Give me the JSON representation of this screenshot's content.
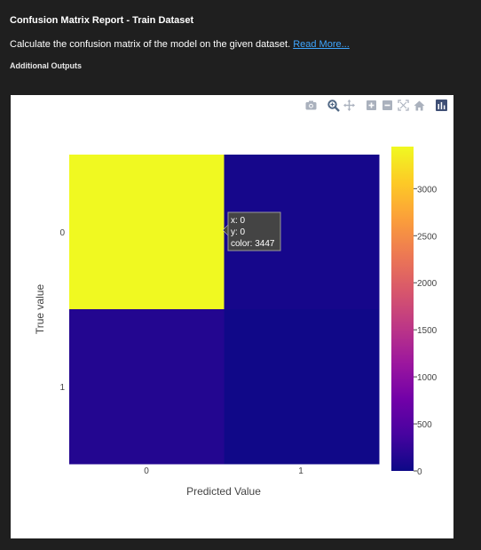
{
  "header": {
    "title": "Confusion Matrix Report - Train Dataset",
    "description": "Calculate the confusion matrix of the model on the given dataset.",
    "read_more": "Read More...",
    "additional_outputs": "Additional Outputs"
  },
  "modebar": {
    "icons": [
      "camera-icon",
      "zoom-icon",
      "pan-icon",
      "zoom-in-icon",
      "zoom-out-icon",
      "autoscale-icon",
      "reset-axes-icon",
      "plotly-logo-icon"
    ]
  },
  "chart_data": {
    "type": "heatmap",
    "x_categories": [
      "0",
      "1"
    ],
    "y_categories": [
      "0",
      "1"
    ],
    "z": [
      [
        3447,
        60
      ],
      [
        150,
        20
      ]
    ],
    "xlabel": "Predicted Value",
    "ylabel": "True value",
    "colorscale": "plasma",
    "colorbar": {
      "range": [
        0,
        3447
      ],
      "ticks": [
        0,
        500,
        1000,
        1500,
        2000,
        2500,
        3000
      ],
      "tick_labels": [
        "0",
        "500",
        "1000",
        "1500",
        "2000",
        "2500",
        "3000"
      ]
    },
    "hover": {
      "x_text": "x: 0",
      "y_text": "y: 0",
      "color_text": "color: 3447"
    }
  }
}
